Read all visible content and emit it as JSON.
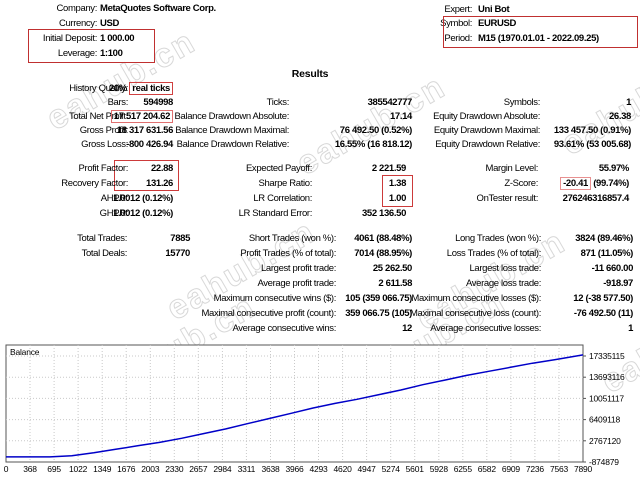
{
  "accent_colors": {
    "red_box": "#c03030",
    "pink_box": "#e89090",
    "watermark_gray": "#d8d8d8"
  },
  "watermark": "eahub.cn",
  "header": {
    "left": [
      {
        "label": "Company:",
        "value": "MetaQuotes Software Corp."
      },
      {
        "label": "Currency:",
        "value": "USD"
      },
      {
        "label": "Initial Deposit:",
        "value": "1 000.00"
      },
      {
        "label": "Leverage:",
        "value": "1:100"
      }
    ],
    "right": [
      {
        "label": "Expert:",
        "value": "Uni Bot"
      },
      {
        "label": "Symbol:",
        "value": "EURUSD"
      },
      {
        "label": "Period:",
        "value": "M15 (1970.01.01 - 2022.09.25)"
      }
    ]
  },
  "results": {
    "title": "Results",
    "blockA": [
      {
        "l1": "History Quality:",
        "v1a": "20% ",
        "v1b": "real ticks"
      },
      {
        "l1": "Bars:",
        "v1": "594998",
        "l2": "Ticks:",
        "v2": "385542777",
        "l3": "Symbols:",
        "v3": "1"
      },
      {
        "l1": "Total Net Profit:",
        "v1": "17 517 204.62",
        "l2": "Balance Drawdown Absolute:",
        "v2": "17.14",
        "l3": "Equity Drawdown Absolute:",
        "v3": "26.38"
      },
      {
        "l1": "Gross Profit:",
        "v1": "18 317 631.56",
        "l2": "Balance Drawdown Maximal:",
        "v2": "76 492.50 (0.52%)",
        "l3": "Equity Drawdown Maximal:",
        "v3": "133 457.50 (0.91%)"
      },
      {
        "l1": "Gross Loss:",
        "v1": "-800 426.94",
        "l2": "Balance Drawdown Relative:",
        "v2": "16.55% (16 818.12)",
        "l3": "Equity Drawdown Relative:",
        "v3": "93.61% (53 005.68)"
      }
    ],
    "blockB": [
      {
        "l1": "Profit Factor:",
        "v1": "22.88",
        "l2": "Expected Payoff:",
        "v2": "2 221.59",
        "l3": "Margin Level:",
        "v3": "55.97%"
      },
      {
        "l1": "Recovery Factor:",
        "v1": "131.26",
        "l2": "Sharpe Ratio:",
        "v2": "1.38",
        "l3": "Z-Score:",
        "v3a": "-20.41",
        "v3b": " (99.74%)"
      },
      {
        "l1": "AHPR:",
        "v1": "1.0012 (0.12%)",
        "l2": "LR Correlation:",
        "v2": "1.00",
        "l3": "OnTester result:",
        "v3": "276246316857.4"
      },
      {
        "l1": "GHPR:",
        "v1": "1.0012 (0.12%)",
        "l2": "LR Standard Error:",
        "v2": "352 136.50"
      }
    ],
    "blockC": [
      {
        "l1": "Total Trades:",
        "v1": "7885",
        "l2": "Short Trades (won %):",
        "v2": "4061 (88.48%)",
        "l3": "Long Trades (won %):",
        "v3": "3824 (89.46%)"
      },
      {
        "l1": "Total Deals:",
        "v1": "15770",
        "l2": "Profit Trades (% of total):",
        "v2": "7014 (88.95%)",
        "l3": "Loss Trades (% of total):",
        "v3": "871 (11.05%)"
      },
      {
        "l2": "Largest profit trade:",
        "v2": "25 262.50",
        "l3": "Largest loss trade:",
        "v3": "-11 660.00"
      },
      {
        "l2": "Average profit trade:",
        "v2": "2 611.58",
        "l3": "Average loss trade:",
        "v3": "-918.97"
      },
      {
        "l2": "Maximum consecutive wins ($):",
        "v2": "105 (359 066.75)",
        "l3": "Maximum consecutive losses ($):",
        "v3": "12 (-38 577.50)"
      },
      {
        "l2": "Maximal consecutive profit (count):",
        "v2": "359 066.75 (105)",
        "l3": "Maximal consecutive loss (count):",
        "v3": "-76 492.50 (11)"
      },
      {
        "l2": "Average consecutive wins:",
        "v2": "12",
        "l3": "Average consecutive losses:",
        "v3": "1"
      }
    ]
  },
  "chart_data": {
    "type": "line",
    "title": "Balance",
    "x_ticks": [
      0,
      368,
      695,
      1022,
      1349,
      1676,
      2003,
      2330,
      2657,
      2984,
      3311,
      3638,
      3966,
      4293,
      4620,
      4947,
      5274,
      5601,
      5928,
      6255,
      6582,
      6909,
      7236,
      7563,
      7890
    ],
    "y_ticks": [
      17335115,
      13693116,
      10051117,
      6409118,
      2767120,
      -874879
    ],
    "x_range": [
      0,
      7890
    ],
    "y_axis": {
      "min": -874879,
      "step": 3641999
    },
    "grid": true,
    "legend_position": "none",
    "series": [
      {
        "name": "Balance",
        "color": "#0000c8",
        "points": [
          [
            0,
            1000
          ],
          [
            600,
            1000
          ],
          [
            900,
            200000
          ],
          [
            1200,
            700000
          ],
          [
            1500,
            1300000
          ],
          [
            1800,
            1900000
          ],
          [
            2100,
            2500000
          ],
          [
            2400,
            3200000
          ],
          [
            2700,
            4000000
          ],
          [
            3000,
            4800000
          ],
          [
            3300,
            5700000
          ],
          [
            3600,
            6600000
          ],
          [
            3900,
            7500000
          ],
          [
            4200,
            8400000
          ],
          [
            4500,
            9200000
          ],
          [
            4800,
            9900000
          ],
          [
            5100,
            10700000
          ],
          [
            5400,
            11500000
          ],
          [
            5700,
            12400000
          ],
          [
            6000,
            13200000
          ],
          [
            6300,
            14000000
          ],
          [
            6600,
            14700000
          ],
          [
            6900,
            15400000
          ],
          [
            7200,
            16100000
          ],
          [
            7500,
            16700000
          ],
          [
            7890,
            17518205
          ]
        ]
      }
    ]
  }
}
